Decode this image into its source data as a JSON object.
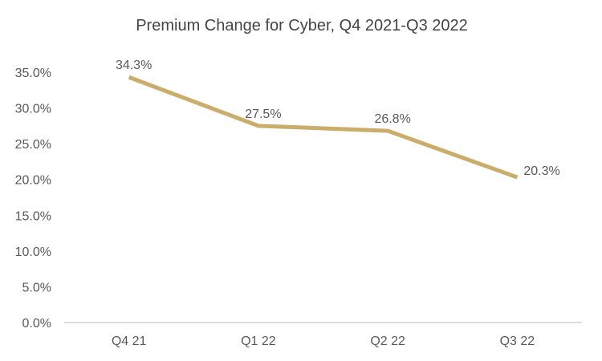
{
  "chart_data": {
    "type": "line",
    "title": "Premium Change for Cyber, Q4 2021-Q3 2022",
    "categories": [
      "Q4 21",
      "Q1 22",
      "Q2 22",
      "Q3 22"
    ],
    "series": [
      {
        "values": [
          34.3,
          27.5,
          26.8,
          20.3
        ],
        "labels": [
          "34.3%",
          "27.5%",
          "26.8%",
          "20.3%"
        ],
        "color": "#CCAC6A"
      }
    ],
    "ylim": [
      0,
      35
    ],
    "yticks": [
      0,
      5,
      10,
      15,
      20,
      25,
      30,
      35
    ],
    "ytick_labels": [
      "0.0%",
      "5.0%",
      "10.0%",
      "15.0%",
      "20.0%",
      "25.0%",
      "30.0%",
      "35.0%"
    ],
    "xlabel": "",
    "ylabel": "",
    "grid": false,
    "legend": "none",
    "axis_color": "#BFBFBF"
  }
}
